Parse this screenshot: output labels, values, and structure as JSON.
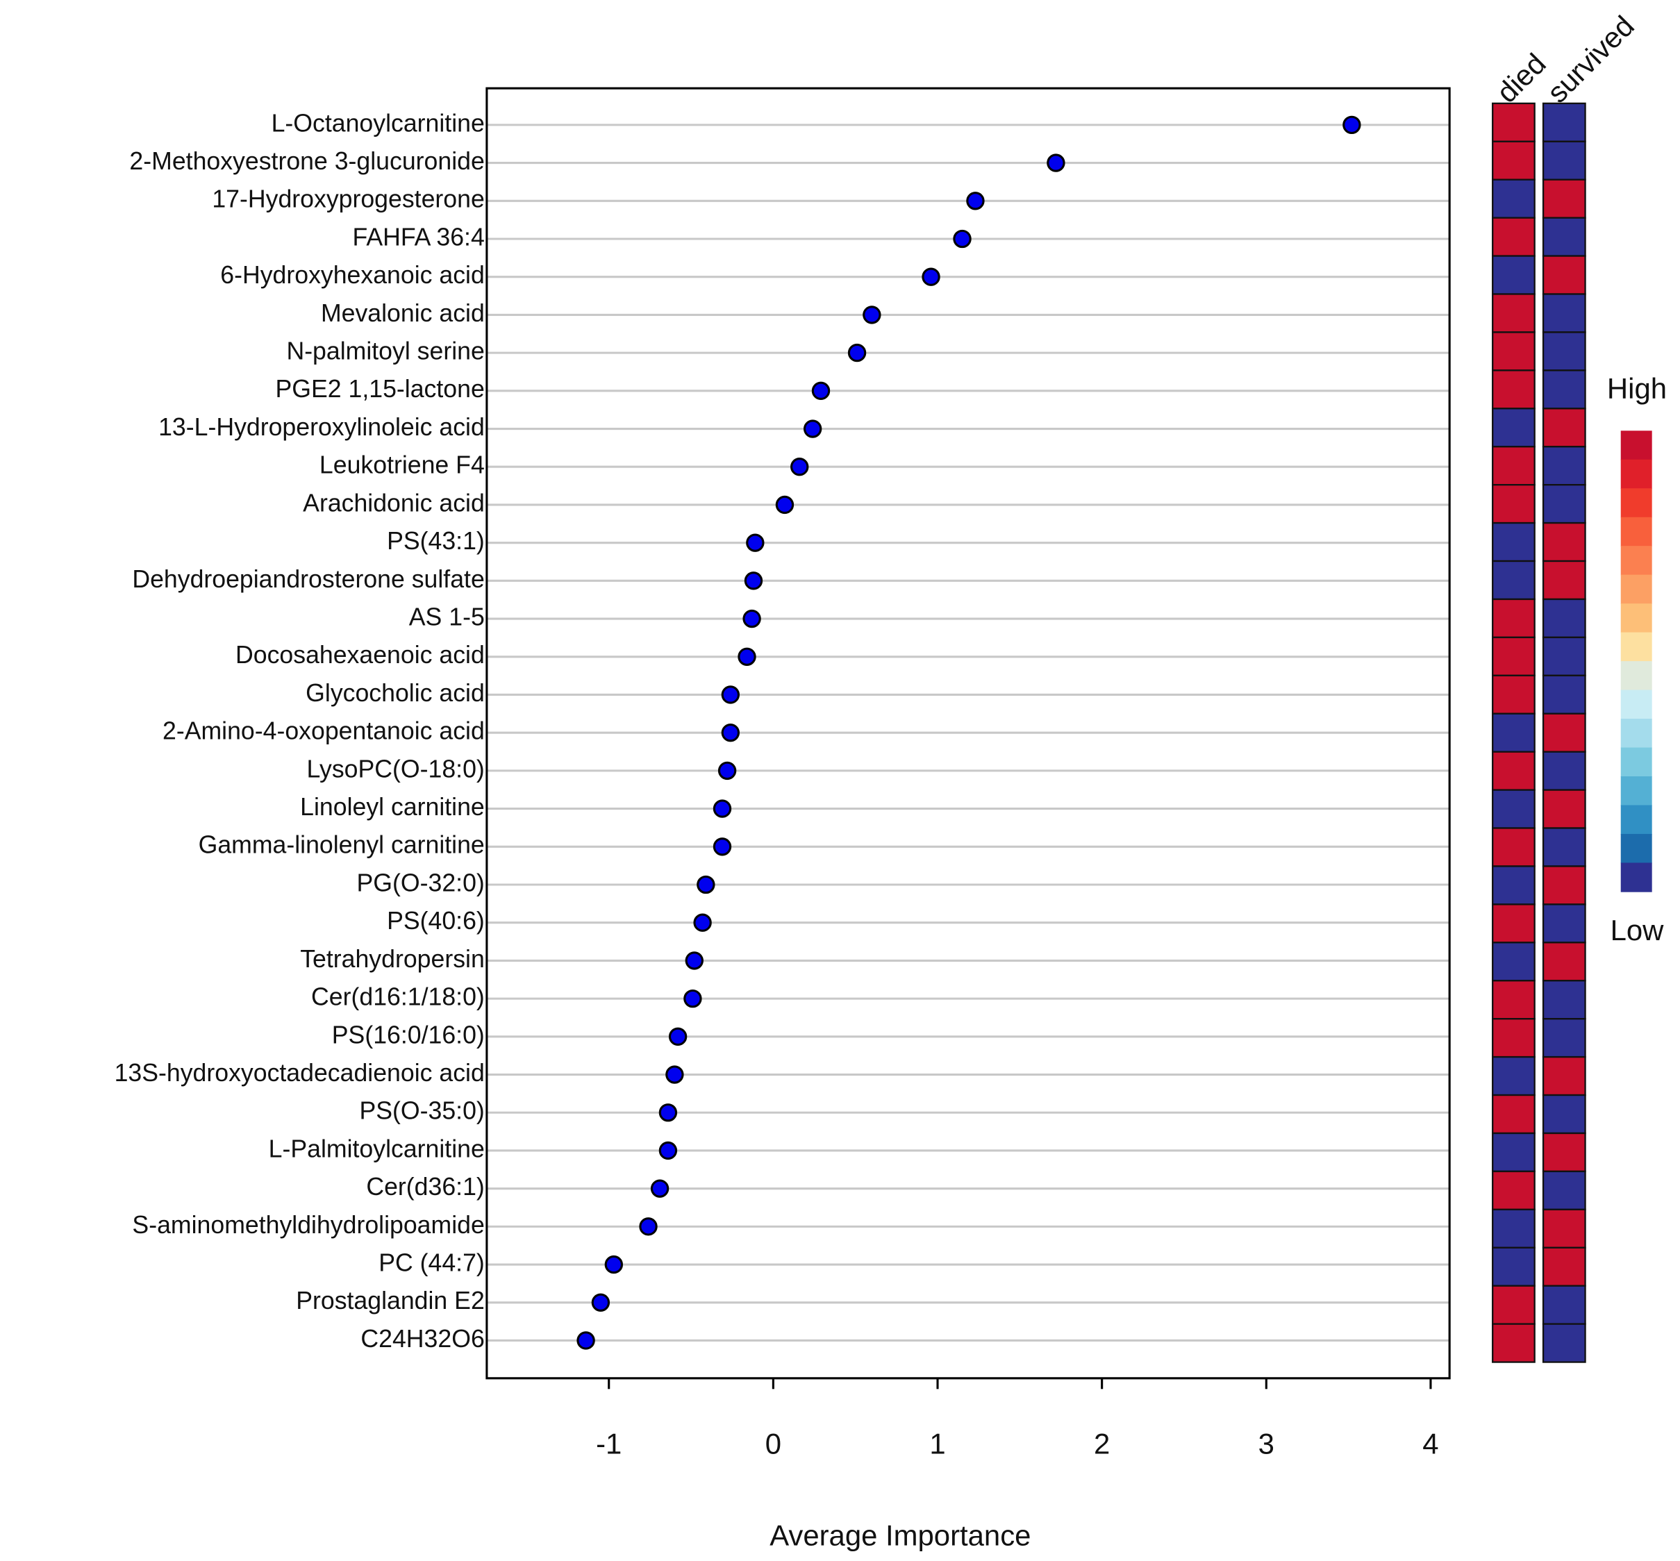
{
  "chart_data": {
    "type": "dot",
    "xlabel": "Average Importance",
    "categories": [
      "L-Octanoylcarnitine",
      "2-Methoxyestrone 3-glucuronide",
      "17-Hydroxyprogesterone",
      "FAHFA 36:4",
      "6-Hydroxyhexanoic acid",
      "Mevalonic acid",
      "N-palmitoyl serine",
      "PGE2 1,15-lactone",
      "13-L-Hydroperoxylinoleic acid",
      "Leukotriene F4",
      "Arachidonic acid",
      "PS(43:1)",
      "Dehydroepiandrosterone sulfate",
      "AS 1-5",
      "Docosahexaenoic acid",
      "Glycocholic acid",
      "2-Amino-4-oxopentanoic acid",
      "LysoPC(O-18:0)",
      "Linoleyl carnitine",
      "Gamma-linolenyl carnitine",
      "PG(O-32:0)",
      "PS(40:6)",
      "Tetrahydropersin",
      "Cer(d16:1/18:0)",
      "PS(16:0/16:0)",
      "13S-hydroxyoctadecadienoic acid",
      "PS(O-35:0)",
      "L-Palmitoylcarnitine",
      "Cer(d36:1)",
      "S-aminomethyldihydrolipoamide",
      "PC (44:7)",
      "Prostaglandin E2",
      "C24H32O6"
    ],
    "values": [
      3.52,
      1.72,
      1.23,
      1.15,
      0.96,
      0.6,
      0.51,
      0.29,
      0.24,
      0.16,
      0.07,
      -0.11,
      -0.12,
      -0.13,
      -0.16,
      -0.26,
      -0.26,
      -0.28,
      -0.31,
      -0.31,
      -0.41,
      -0.43,
      -0.48,
      -0.49,
      -0.58,
      -0.6,
      -0.64,
      -0.64,
      -0.69,
      -0.76,
      -0.97,
      -1.05,
      -1.14
    ],
    "color": "#0000ee",
    "xlim": [
      -1.743,
      4.115
    ],
    "xticks": [
      -1,
      0,
      1,
      2,
      3,
      4
    ],
    "grid": true,
    "heatmap": {
      "columns": [
        "died",
        "survived"
      ],
      "colors": [
        [
          "#c8102e",
          "#2e3192"
        ],
        [
          "#c8102e",
          "#2e3192"
        ],
        [
          "#2e3192",
          "#c8102e"
        ],
        [
          "#c8102e",
          "#2e3192"
        ],
        [
          "#2e3192",
          "#c8102e"
        ],
        [
          "#c8102e",
          "#2e3192"
        ],
        [
          "#c8102e",
          "#2e3192"
        ],
        [
          "#c8102e",
          "#2e3192"
        ],
        [
          "#2e3192",
          "#c8102e"
        ],
        [
          "#c8102e",
          "#2e3192"
        ],
        [
          "#c8102e",
          "#2e3192"
        ],
        [
          "#2e3192",
          "#c8102e"
        ],
        [
          "#2e3192",
          "#c8102e"
        ],
        [
          "#c8102e",
          "#2e3192"
        ],
        [
          "#c8102e",
          "#2e3192"
        ],
        [
          "#c8102e",
          "#2e3192"
        ],
        [
          "#2e3192",
          "#c8102e"
        ],
        [
          "#c8102e",
          "#2e3192"
        ],
        [
          "#2e3192",
          "#c8102e"
        ],
        [
          "#c8102e",
          "#2e3192"
        ],
        [
          "#2e3192",
          "#c8102e"
        ],
        [
          "#c8102e",
          "#2e3192"
        ],
        [
          "#2e3192",
          "#c8102e"
        ],
        [
          "#c8102e",
          "#2e3192"
        ],
        [
          "#c8102e",
          "#2e3192"
        ],
        [
          "#2e3192",
          "#c8102e"
        ],
        [
          "#c8102e",
          "#2e3192"
        ],
        [
          "#2e3192",
          "#c8102e"
        ],
        [
          "#c8102e",
          "#2e3192"
        ],
        [
          "#2e3192",
          "#c8102e"
        ],
        [
          "#2e3192",
          "#c8102e"
        ],
        [
          "#c8102e",
          "#2e3192"
        ],
        [
          "#c8102e",
          "#2e3192"
        ]
      ]
    },
    "legend": {
      "high": "High",
      "low": "Low",
      "colors": [
        "#c8102e",
        "#e0202a",
        "#f03c2c",
        "#f8603c",
        "#fb8050",
        "#fca064",
        "#fdbf78",
        "#fde0a0",
        "#e0eadc",
        "#c8ecf4",
        "#a4dcec",
        "#7ccae0",
        "#54b0d4",
        "#3090c4",
        "#1c6cac",
        "#2e3192"
      ]
    }
  }
}
